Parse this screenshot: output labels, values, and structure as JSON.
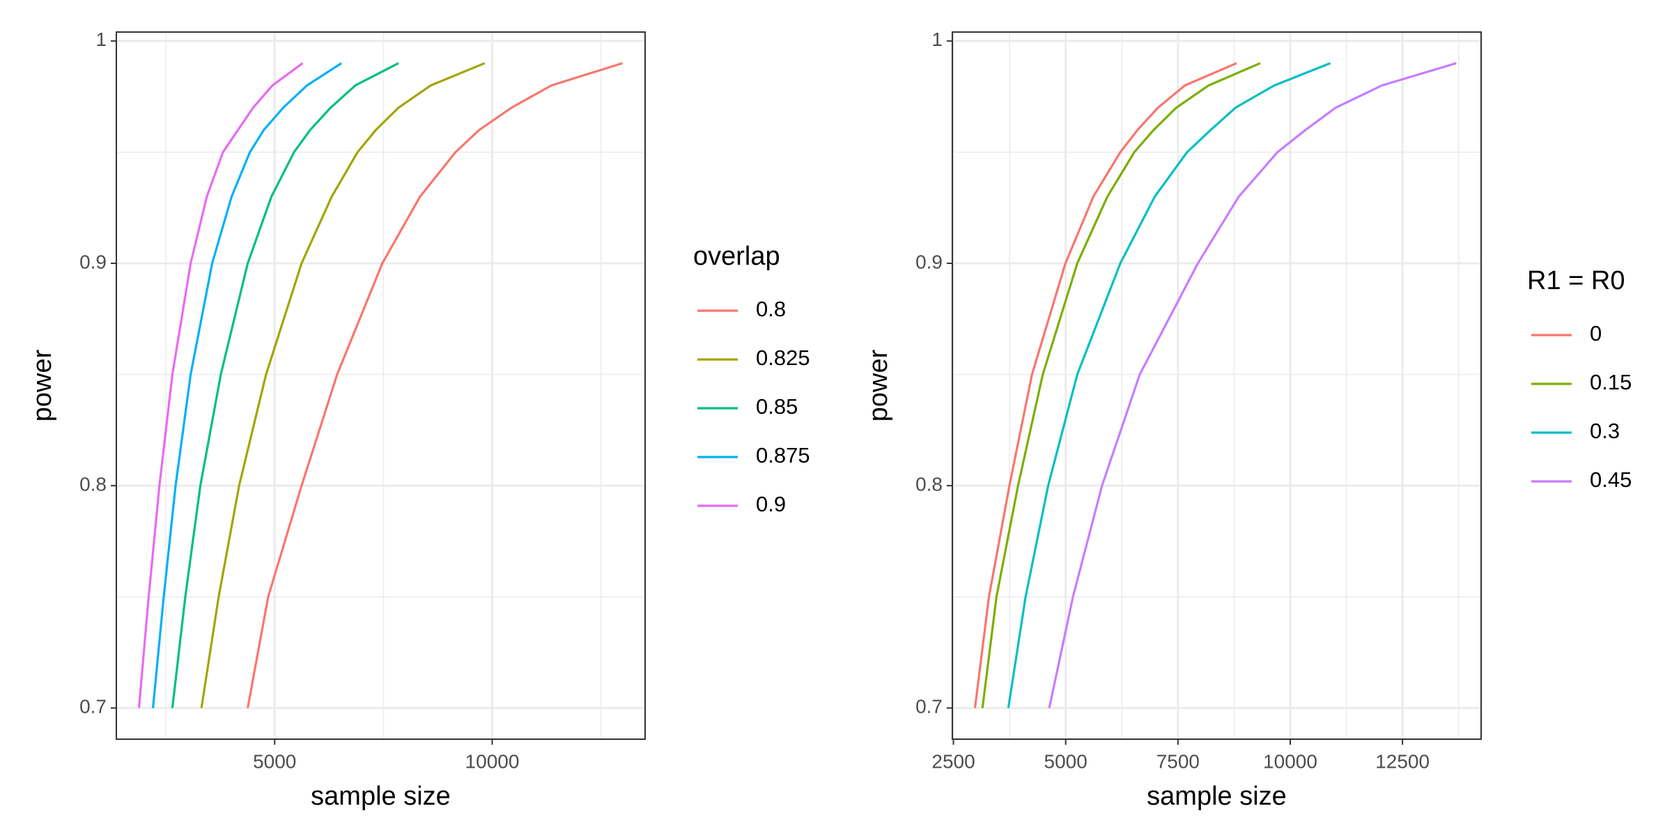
{
  "chart_data": [
    {
      "type": "line",
      "x_label": "sample size",
      "y_label": "power",
      "legend_title": "overlap",
      "xlim": [
        1361,
        13515
      ],
      "xticks": [
        5000,
        10000
      ],
      "ylim": [
        0.686,
        1.004
      ],
      "yticks": [
        0.7,
        0.8,
        0.9,
        1.0
      ],
      "grid": true,
      "legend": "right",
      "series": [
        {
          "name": "0.8",
          "color": "#F8766D",
          "x": [
            4381,
            4851,
            5619,
            6436,
            7475,
            8342,
            9158,
            9703,
            10446,
            11361,
            12995
          ],
          "values": [
            0.7,
            0.75,
            0.8,
            0.85,
            0.9,
            0.93,
            0.95,
            0.96,
            0.97,
            0.98,
            0.99
          ]
        },
        {
          "name": "0.825",
          "color": "#A3A500",
          "x": [
            3317,
            3713,
            4183,
            4802,
            5619,
            6312,
            6906,
            7327,
            7847,
            8589,
            9827
          ],
          "values": [
            0.7,
            0.75,
            0.8,
            0.85,
            0.9,
            0.93,
            0.95,
            0.96,
            0.97,
            0.98,
            0.99
          ]
        },
        {
          "name": "0.85",
          "color": "#00BF7D",
          "x": [
            2649,
            2946,
            3292,
            3762,
            4381,
            4926,
            5446,
            5817,
            6287,
            6856,
            7847
          ],
          "values": [
            0.7,
            0.75,
            0.8,
            0.85,
            0.9,
            0.93,
            0.95,
            0.96,
            0.97,
            0.98,
            0.99
          ]
        },
        {
          "name": "0.875",
          "color": "#00B0F6",
          "x": [
            2203,
            2450,
            2723,
            3069,
            3564,
            4010,
            4431,
            4752,
            5198,
            5743,
            6535
          ],
          "values": [
            0.7,
            0.75,
            0.8,
            0.85,
            0.9,
            0.93,
            0.95,
            0.96,
            0.97,
            0.98,
            0.99
          ]
        },
        {
          "name": "0.9",
          "color": "#E76BF3",
          "x": [
            1881,
            2104,
            2351,
            2649,
            3069,
            3441,
            3812,
            4158,
            4505,
            4950,
            5644
          ],
          "values": [
            0.7,
            0.75,
            0.8,
            0.85,
            0.9,
            0.93,
            0.95,
            0.96,
            0.97,
            0.98,
            0.99
          ]
        }
      ]
    },
    {
      "type": "line",
      "x_label": "sample size",
      "y_label": "power",
      "legend_title": "R1 = R0",
      "xlim": [
        2476,
        14251
      ],
      "xticks": [
        2500,
        5000,
        7500,
        10000,
        12500
      ],
      "ylim": [
        0.686,
        1.004
      ],
      "yticks": [
        0.7,
        0.8,
        0.9,
        1.0
      ],
      "grid": true,
      "legend": "right",
      "series": [
        {
          "name": "0",
          "color": "#F8766D",
          "x": [
            2980,
            3291,
            3747,
            4250,
            4994,
            5617,
            6217,
            6601,
            7056,
            7656,
            8807
          ],
          "values": [
            0.7,
            0.75,
            0.8,
            0.85,
            0.9,
            0.93,
            0.95,
            0.96,
            0.97,
            0.98,
            0.99
          ]
        },
        {
          "name": "0.15",
          "color": "#7CAE00",
          "x": [
            3147,
            3459,
            3939,
            4490,
            5258,
            5929,
            6529,
            6960,
            7464,
            8183,
            9334
          ],
          "values": [
            0.7,
            0.75,
            0.8,
            0.85,
            0.9,
            0.93,
            0.95,
            0.96,
            0.97,
            0.98,
            0.99
          ]
        },
        {
          "name": "0.3",
          "color": "#00BFC4",
          "x": [
            3723,
            4107,
            4610,
            5258,
            6217,
            6984,
            7704,
            8231,
            8783,
            9646,
            10893
          ],
          "values": [
            0.7,
            0.75,
            0.8,
            0.85,
            0.9,
            0.93,
            0.95,
            0.96,
            0.97,
            0.98,
            0.99
          ]
        },
        {
          "name": "0.45",
          "color": "#C77CFF",
          "x": [
            4634,
            5162,
            5809,
            6649,
            7944,
            8855,
            9718,
            10342,
            11013,
            12045,
            13699
          ],
          "values": [
            0.7,
            0.75,
            0.8,
            0.85,
            0.9,
            0.93,
            0.95,
            0.96,
            0.97,
            0.98,
            0.99
          ]
        }
      ]
    }
  ]
}
